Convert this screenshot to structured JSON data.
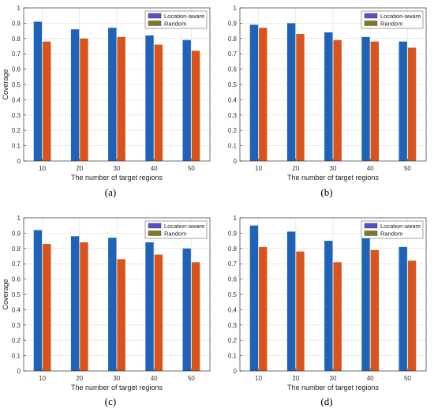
{
  "chart_data": [
    {
      "type": "bar",
      "panel": "(a)",
      "categories": [
        "10",
        "20",
        "30",
        "40",
        "50"
      ],
      "series": [
        {
          "name": "Location-aware",
          "values": [
            0.91,
            0.86,
            0.87,
            0.82,
            0.79
          ]
        },
        {
          "name": "Random",
          "values": [
            0.78,
            0.8,
            0.81,
            0.76,
            0.72
          ]
        }
      ],
      "xlabel": "The number of target regions",
      "ylabel": "Coverage",
      "ylim": [
        0,
        1
      ],
      "yticks": [
        "0",
        "0.1",
        "0.2",
        "0.3",
        "0.4",
        "0.5",
        "0.6",
        "0.7",
        "0.8",
        "0.9",
        "1"
      ],
      "grid": true,
      "legend": "top-right"
    },
    {
      "type": "bar",
      "panel": "(b)",
      "categories": [
        "10",
        "20",
        "30",
        "40",
        "50"
      ],
      "series": [
        {
          "name": "Location-aware",
          "values": [
            0.89,
            0.9,
            0.84,
            0.81,
            0.78
          ]
        },
        {
          "name": "Random",
          "values": [
            0.87,
            0.83,
            0.79,
            0.78,
            0.74
          ]
        }
      ],
      "xlabel": "The number of target regions",
      "ylabel": "",
      "ylim": [
        0,
        1
      ],
      "yticks": [
        "0",
        "0.1",
        "0.2",
        "0.3",
        "0.4",
        "0.5",
        "0.6",
        "0.7",
        "0.8",
        "0.9",
        "1"
      ],
      "grid": true,
      "legend": "top-right"
    },
    {
      "type": "bar",
      "panel": "(c)",
      "categories": [
        "10",
        "20",
        "30",
        "40",
        "50"
      ],
      "series": [
        {
          "name": "Location-aware",
          "values": [
            0.92,
            0.88,
            0.87,
            0.84,
            0.8
          ]
        },
        {
          "name": "Random",
          "values": [
            0.83,
            0.84,
            0.73,
            0.76,
            0.71
          ]
        }
      ],
      "xlabel": "The number of target regions",
      "ylabel": "Coverage",
      "ylim": [
        0,
        1
      ],
      "yticks": [
        "0",
        "0.1",
        "0.2",
        "0.3",
        "0.4",
        "0.5",
        "0.6",
        "0.7",
        "0.8",
        "0.9",
        "1"
      ],
      "grid": true,
      "legend": "top-right"
    },
    {
      "type": "bar",
      "panel": "(d)",
      "categories": [
        "10",
        "20",
        "30",
        "40",
        "50"
      ],
      "series": [
        {
          "name": "Location-aware",
          "values": [
            0.95,
            0.91,
            0.85,
            0.88,
            0.81
          ]
        },
        {
          "name": "Random",
          "values": [
            0.81,
            0.78,
            0.71,
            0.79,
            0.72
          ]
        }
      ],
      "xlabel": "The number of target regions",
      "ylabel": "",
      "ylim": [
        0,
        1
      ],
      "yticks": [
        "0",
        "0.1",
        "0.2",
        "0.3",
        "0.4",
        "0.5",
        "0.6",
        "0.7",
        "0.8",
        "0.9",
        "1"
      ],
      "grid": true,
      "legend": "top-right"
    }
  ],
  "colors": {
    "location_aware_bar": "#1f63b8",
    "random_bar": "#d9541c",
    "location_aware_legend": "#5b4fc4",
    "random_legend": "#7e7a22",
    "grid": "#e6e6e6",
    "axis": "#333333"
  }
}
